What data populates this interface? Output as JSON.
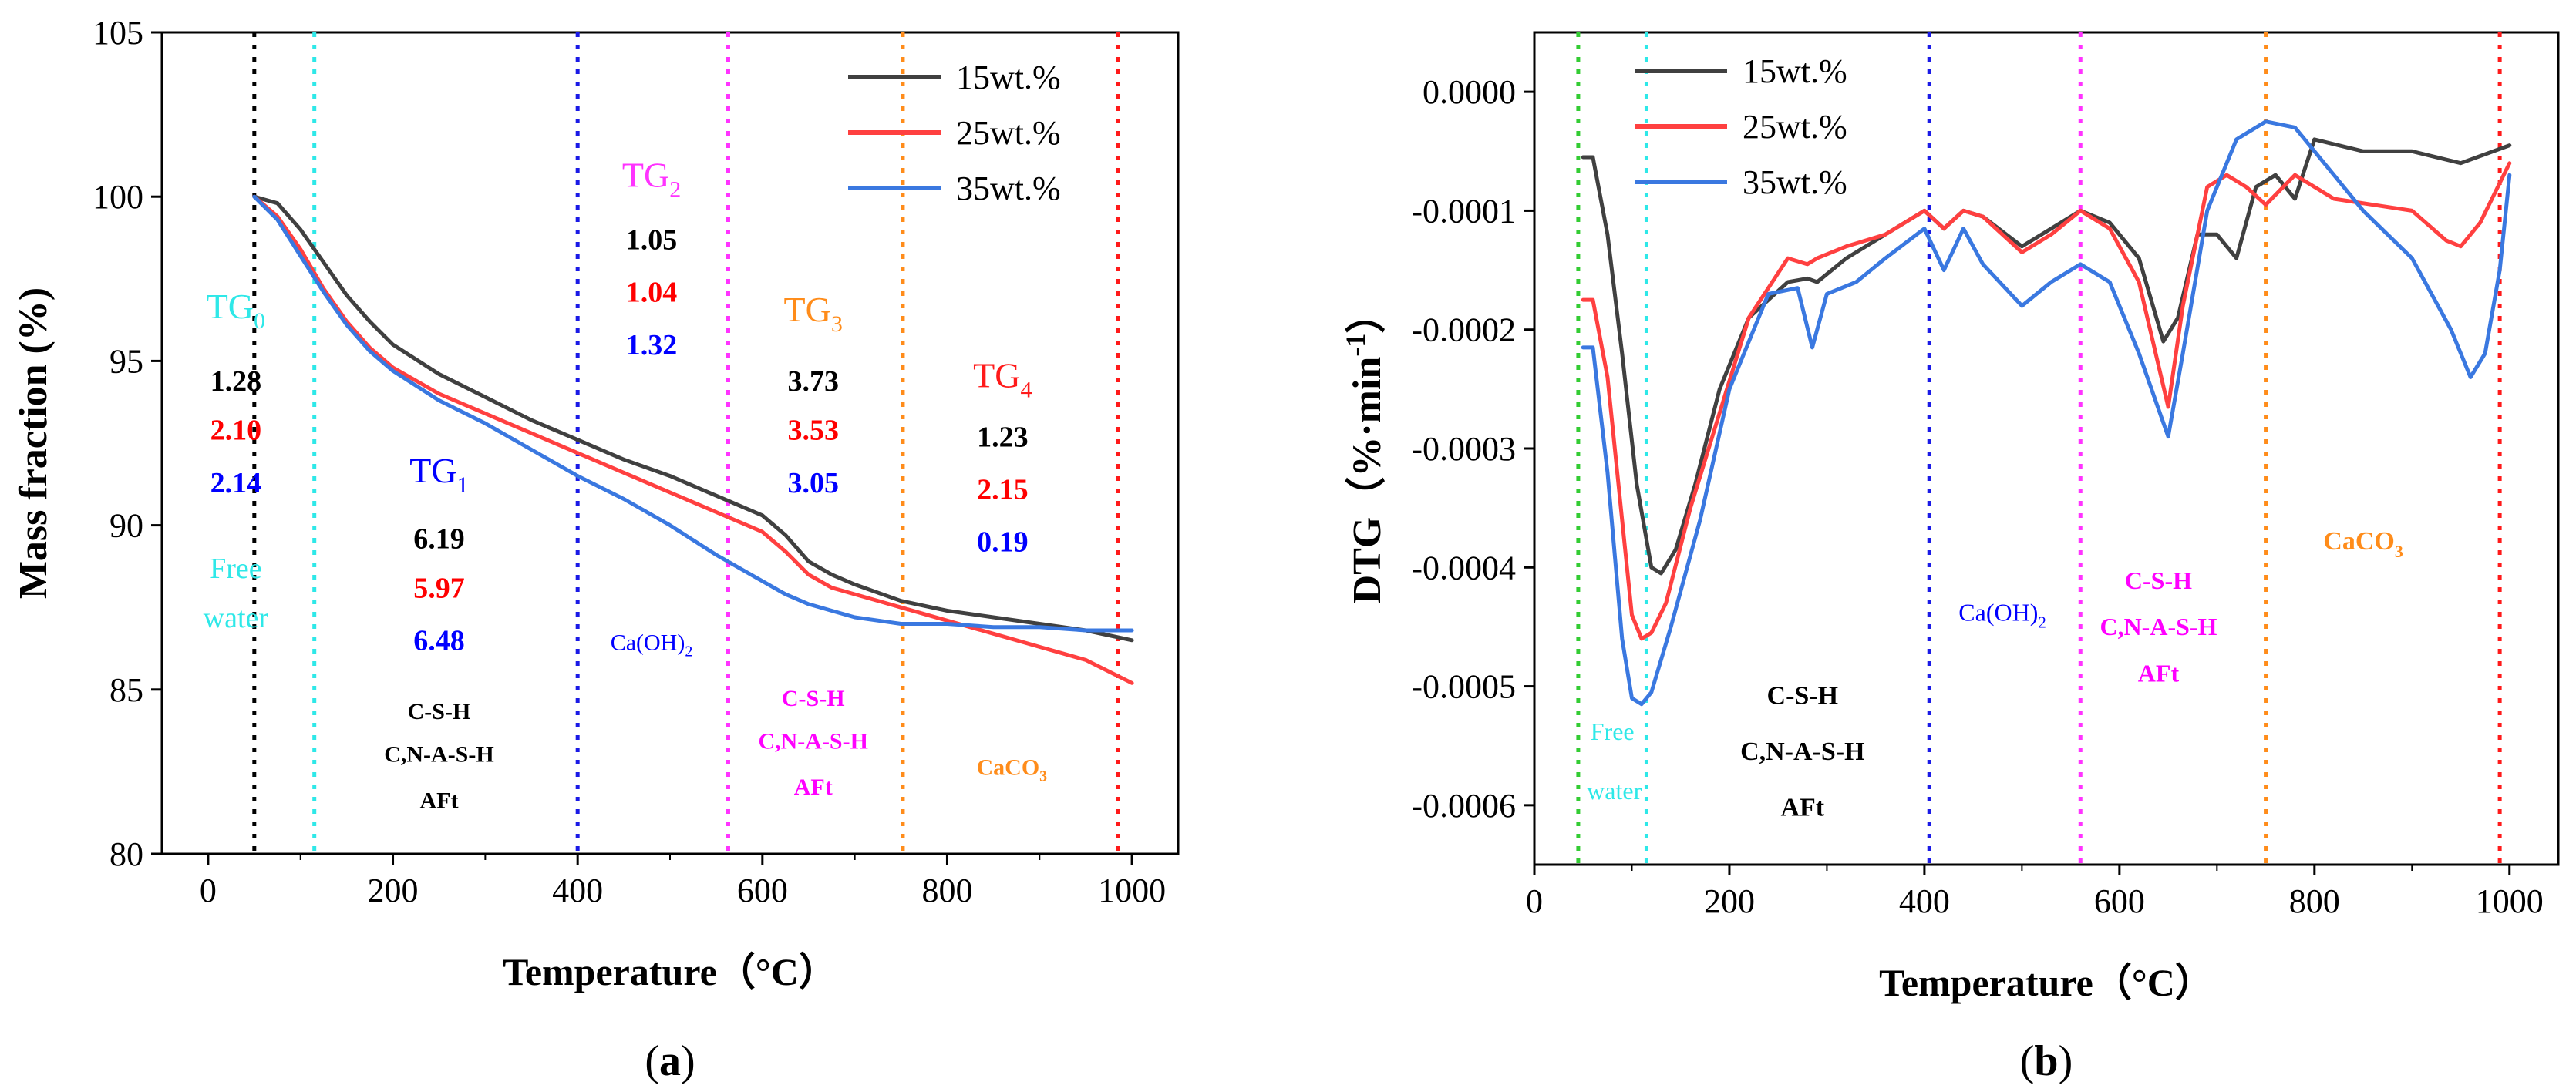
{
  "chart_data": [
    {
      "panel": "a",
      "type": "line",
      "panel_label": {
        "open": "(",
        "letter": "a",
        "close": ")"
      },
      "xlabel": "Temperature（°C）",
      "ylabel": "Mass fraction (%)",
      "xlim": [
        -50,
        1050
      ],
      "ylim": [
        80,
        105
      ],
      "xticks": [
        "0",
        "200",
        "400",
        "600",
        "800",
        "1000"
      ],
      "yticks": [
        "80",
        "85",
        "90",
        "95",
        "100",
        "105"
      ],
      "legend": {
        "position": "top-right",
        "entries": [
          "15wt.%",
          "25wt.%",
          "35wt.%"
        ]
      },
      "series": [
        {
          "name": "15wt.%",
          "color": "#404040",
          "x": [
            50,
            75,
            100,
            125,
            150,
            175,
            200,
            250,
            300,
            350,
            400,
            450,
            500,
            550,
            600,
            625,
            650,
            675,
            700,
            750,
            800,
            850,
            900,
            950,
            1000
          ],
          "y": [
            100.0,
            99.8,
            99.0,
            98.0,
            97.0,
            96.2,
            95.5,
            94.6,
            93.9,
            93.2,
            92.6,
            92.0,
            91.5,
            90.9,
            90.3,
            89.7,
            88.9,
            88.5,
            88.2,
            87.7,
            87.4,
            87.2,
            87.0,
            86.8,
            86.5
          ]
        },
        {
          "name": "25wt.%",
          "color": "#ff4040",
          "x": [
            50,
            75,
            100,
            125,
            150,
            175,
            200,
            250,
            300,
            350,
            400,
            450,
            500,
            550,
            600,
            625,
            650,
            675,
            700,
            750,
            800,
            850,
            900,
            950,
            1000
          ],
          "y": [
            100.0,
            99.4,
            98.4,
            97.2,
            96.2,
            95.4,
            94.8,
            94.0,
            93.4,
            92.8,
            92.2,
            91.6,
            91.0,
            90.4,
            89.8,
            89.2,
            88.5,
            88.1,
            87.9,
            87.5,
            87.1,
            86.7,
            86.3,
            85.9,
            85.2
          ]
        },
        {
          "name": "35wt.%",
          "color": "#3a78e0",
          "x": [
            50,
            75,
            100,
            125,
            150,
            175,
            200,
            250,
            300,
            350,
            400,
            450,
            500,
            550,
            600,
            625,
            650,
            675,
            700,
            750,
            800,
            850,
            900,
            950,
            1000
          ],
          "y": [
            100.0,
            99.3,
            98.2,
            97.1,
            96.1,
            95.3,
            94.7,
            93.8,
            93.1,
            92.3,
            91.5,
            90.8,
            90.0,
            89.1,
            88.3,
            87.9,
            87.6,
            87.4,
            87.2,
            87.0,
            87.0,
            86.9,
            86.9,
            86.8,
            86.8
          ]
        }
      ],
      "vlines": [
        {
          "x": 50,
          "color": "#000000"
        },
        {
          "x": 115,
          "color": "#2ee8e8"
        },
        {
          "x": 400,
          "color": "#1a1ae6"
        },
        {
          "x": 563,
          "color": "#ff33ff"
        },
        {
          "x": 752,
          "color": "#ff8c1a"
        },
        {
          "x": 985,
          "color": "#ff1a1a"
        }
      ],
      "annotations": [
        {
          "text": "TG",
          "sub": "0",
          "color": "#2ee8e8",
          "x": 30,
          "y": 96.3,
          "size": 46
        },
        {
          "text": "1.28",
          "color": "#000000",
          "x": 30,
          "y": 94.1,
          "bold": true,
          "size": 38
        },
        {
          "text": "2.10",
          "color": "#ff0000",
          "x": 30,
          "y": 92.6,
          "bold": true,
          "size": 38
        },
        {
          "text": "2.14",
          "color": "#0000ff",
          "x": 30,
          "y": 91.0,
          "bold": true,
          "size": 38
        },
        {
          "text": "Free",
          "color": "#2ee8e8",
          "x": 30,
          "y": 88.4,
          "size": 38
        },
        {
          "text": "water",
          "color": "#2ee8e8",
          "x": 30,
          "y": 86.9,
          "size": 38
        },
        {
          "text": "TG",
          "sub": "1",
          "color": "#0000ff",
          "x": 250,
          "y": 91.3,
          "size": 46
        },
        {
          "text": "6.19",
          "color": "#000000",
          "x": 250,
          "y": 89.3,
          "bold": true,
          "size": 38
        },
        {
          "text": "5.97",
          "color": "#ff0000",
          "x": 250,
          "y": 87.8,
          "bold": true,
          "size": 38
        },
        {
          "text": "6.48",
          "color": "#0000ff",
          "x": 250,
          "y": 86.2,
          "bold": true,
          "size": 38
        },
        {
          "text": "C-S-H",
          "color": "#000000",
          "x": 250,
          "y": 84.1,
          "bold": true,
          "size": 30
        },
        {
          "text": "C,N-A-S-H",
          "color": "#000000",
          "x": 250,
          "y": 82.8,
          "bold": true,
          "size": 30
        },
        {
          "text": "AFt",
          "color": "#000000",
          "x": 250,
          "y": 81.4,
          "bold": true,
          "size": 30
        },
        {
          "text": "TG",
          "sub": "2",
          "color": "#ff33ff",
          "x": 480,
          "y": 100.3,
          "size": 46
        },
        {
          "text": "1.05",
          "color": "#000000",
          "x": 480,
          "y": 98.4,
          "bold": true,
          "size": 38
        },
        {
          "text": "1.04",
          "color": "#ff0000",
          "x": 480,
          "y": 96.8,
          "bold": true,
          "size": 38
        },
        {
          "text": "1.32",
          "color": "#0000ff",
          "x": 480,
          "y": 95.2,
          "bold": true,
          "size": 38
        },
        {
          "text": "Ca(OH)",
          "sub": "2",
          "color": "#0000ff",
          "x": 480,
          "y": 86.2,
          "size": 30
        },
        {
          "text": "TG",
          "sub": "3",
          "color": "#ff8c1a",
          "x": 655,
          "y": 96.2,
          "size": 46
        },
        {
          "text": "3.73",
          "color": "#000000",
          "x": 655,
          "y": 94.1,
          "bold": true,
          "size": 38
        },
        {
          "text": "3.53",
          "color": "#ff0000",
          "x": 655,
          "y": 92.6,
          "bold": true,
          "size": 38
        },
        {
          "text": "3.05",
          "color": "#0000ff",
          "x": 655,
          "y": 91.0,
          "bold": true,
          "size": 38
        },
        {
          "text": "C-S-H",
          "color": "#ff00ff",
          "x": 655,
          "y": 84.5,
          "bold": true,
          "size": 30
        },
        {
          "text": "C,N-A-S-H",
          "color": "#ff00ff",
          "x": 655,
          "y": 83.2,
          "bold": true,
          "size": 30
        },
        {
          "text": "AFt",
          "color": "#ff00ff",
          "x": 655,
          "y": 81.8,
          "bold": true,
          "size": 30
        },
        {
          "text": "TG",
          "sub": "4",
          "color": "#ff1a1a",
          "x": 860,
          "y": 94.2,
          "size": 46
        },
        {
          "text": "1.23",
          "color": "#000000",
          "x": 860,
          "y": 92.4,
          "bold": true,
          "size": 38
        },
        {
          "text": "2.15",
          "color": "#ff0000",
          "x": 860,
          "y": 90.8,
          "bold": true,
          "size": 38
        },
        {
          "text": "0.19",
          "color": "#0000ff",
          "x": 860,
          "y": 89.2,
          "bold": true,
          "size": 38
        },
        {
          "text": "CaCO",
          "sub": "3",
          "color": "#ff8c1a",
          "x": 870,
          "y": 82.4,
          "bold": true,
          "size": 30
        }
      ]
    },
    {
      "panel": "b",
      "type": "line",
      "panel_label": {
        "open": "(",
        "letter": "b",
        "close": ")"
      },
      "xlabel": "Temperature（°C）",
      "ylabel": "DTG（%·min",
      "ylabel_sup": "-1",
      "ylabel_close": "）",
      "xlim": [
        0,
        1050
      ],
      "ylim": [
        -0.00065,
        5e-05
      ],
      "xticks": [
        "0",
        "200",
        "400",
        "600",
        "800",
        "1000"
      ],
      "xtick_values": [
        0,
        200,
        400,
        600,
        800,
        1000
      ],
      "yticks": [
        "-0.0006",
        "-0.0005",
        "-0.0004",
        "-0.0003",
        "-0.0002",
        "-0.0001",
        "0.0000"
      ],
      "ytick_values": [
        -0.0006,
        -0.0005,
        -0.0004,
        -0.0003,
        -0.0002,
        -0.0001,
        0.0
      ],
      "legend": {
        "position": "top-left",
        "entries": [
          "15wt.%",
          "25wt.%",
          "35wt.%"
        ]
      },
      "series": [
        {
          "name": "15wt.%",
          "color": "#404040",
          "x": [
            50,
            60,
            75,
            90,
            105,
            120,
            130,
            145,
            165,
            190,
            220,
            260,
            280,
            290,
            320,
            360,
            400,
            420,
            440,
            460,
            500,
            530,
            560,
            590,
            620,
            645,
            660,
            680,
            700,
            720,
            740,
            760,
            780,
            800,
            850,
            900,
            950,
            1000
          ],
          "y": [
            -5.5e-05,
            -5.5e-05,
            -0.00012,
            -0.00022,
            -0.00033,
            -0.0004,
            -0.000405,
            -0.000385,
            -0.00033,
            -0.00025,
            -0.00019,
            -0.00016,
            -0.000157,
            -0.00016,
            -0.00014,
            -0.00012,
            -0.0001,
            -0.000115,
            -0.0001,
            -0.000105,
            -0.00013,
            -0.000115,
            -0.0001,
            -0.00011,
            -0.00014,
            -0.00021,
            -0.00019,
            -0.00012,
            -0.00012,
            -0.00014,
            -8e-05,
            -7e-05,
            -9e-05,
            -4e-05,
            -5e-05,
            -5e-05,
            -6e-05,
            -4.5e-05
          ]
        },
        {
          "name": "25wt.%",
          "color": "#ff4040",
          "x": [
            50,
            60,
            75,
            90,
            100,
            110,
            120,
            135,
            160,
            190,
            220,
            260,
            280,
            290,
            320,
            360,
            400,
            420,
            440,
            460,
            500,
            530,
            560,
            590,
            620,
            650,
            665,
            690,
            710,
            730,
            750,
            780,
            820,
            860,
            900,
            935,
            950,
            970,
            1000
          ],
          "y": [
            -0.000175,
            -0.000175,
            -0.00024,
            -0.00036,
            -0.00044,
            -0.00046,
            -0.000455,
            -0.00043,
            -0.00035,
            -0.00027,
            -0.00019,
            -0.00014,
            -0.000145,
            -0.00014,
            -0.00013,
            -0.00012,
            -0.0001,
            -0.000115,
            -0.0001,
            -0.000105,
            -0.000135,
            -0.00012,
            -0.0001,
            -0.000115,
            -0.00016,
            -0.000265,
            -0.00018,
            -8e-05,
            -7e-05,
            -8e-05,
            -9.5e-05,
            -7e-05,
            -9e-05,
            -9.5e-05,
            -0.0001,
            -0.000125,
            -0.00013,
            -0.00011,
            -6e-05
          ]
        },
        {
          "name": "35wt.%",
          "color": "#3a78e0",
          "x": [
            50,
            60,
            75,
            90,
            100,
            110,
            120,
            140,
            170,
            200,
            240,
            270,
            285,
            300,
            330,
            360,
            400,
            420,
            440,
            460,
            500,
            530,
            560,
            590,
            620,
            650,
            665,
            690,
            720,
            750,
            780,
            800,
            850,
            900,
            940,
            960,
            975,
            990,
            1000
          ],
          "y": [
            -0.000215,
            -0.000215,
            -0.00032,
            -0.00046,
            -0.00051,
            -0.000515,
            -0.000505,
            -0.00045,
            -0.00036,
            -0.00025,
            -0.00017,
            -0.000165,
            -0.000215,
            -0.00017,
            -0.00016,
            -0.00014,
            -0.000115,
            -0.00015,
            -0.000115,
            -0.000145,
            -0.00018,
            -0.00016,
            -0.000145,
            -0.00016,
            -0.00022,
            -0.00029,
            -0.00022,
            -0.0001,
            -4e-05,
            -2.5e-05,
            -3e-05,
            -5e-05,
            -0.0001,
            -0.00014,
            -0.0002,
            -0.00024,
            -0.00022,
            -0.00015,
            -7e-05
          ]
        }
      ],
      "vlines": [
        {
          "x": 45,
          "color": "#33cc33"
        },
        {
          "x": 115,
          "color": "#2ee8e8"
        },
        {
          "x": 405,
          "color": "#1a1ae6"
        },
        {
          "x": 560,
          "color": "#ff33ff"
        },
        {
          "x": 750,
          "color": "#ff8c1a"
        },
        {
          "x": 990,
          "color": "#ff1a1a"
        }
      ],
      "annotations": [
        {
          "text": "Free",
          "color": "#2ee8e8",
          "x": 80,
          "y": -0.000545,
          "size": 32
        },
        {
          "text": "water",
          "color": "#2ee8e8",
          "x": 82,
          "y": -0.000595,
          "size": 32
        },
        {
          "text": "C-S-H",
          "color": "#000000",
          "x": 275,
          "y": -0.000515,
          "bold": true,
          "size": 34
        },
        {
          "text": "C,N-A-S-H",
          "color": "#000000",
          "x": 275,
          "y": -0.000562,
          "bold": true,
          "size": 34
        },
        {
          "text": "AFt",
          "color": "#000000",
          "x": 275,
          "y": -0.000609,
          "bold": true,
          "size": 34
        },
        {
          "text": "Ca(OH)",
          "sub": "2",
          "color": "#0000ff",
          "x": 480,
          "y": -0.000445,
          "size": 32
        },
        {
          "text": "C-S-H",
          "color": "#ff00ff",
          "x": 640,
          "y": -0.000418,
          "bold": true,
          "size": 32
        },
        {
          "text": "C,N-A-S-H",
          "color": "#ff00ff",
          "x": 640,
          "y": -0.000457,
          "bold": true,
          "size": 32
        },
        {
          "text": "AFt",
          "color": "#ff00ff",
          "x": 640,
          "y": -0.000496,
          "bold": true,
          "size": 32
        },
        {
          "text": "CaCO",
          "sub": "3",
          "color": "#ff8c1a",
          "x": 850,
          "y": -0.000385,
          "bold": true,
          "size": 34
        }
      ]
    }
  ]
}
